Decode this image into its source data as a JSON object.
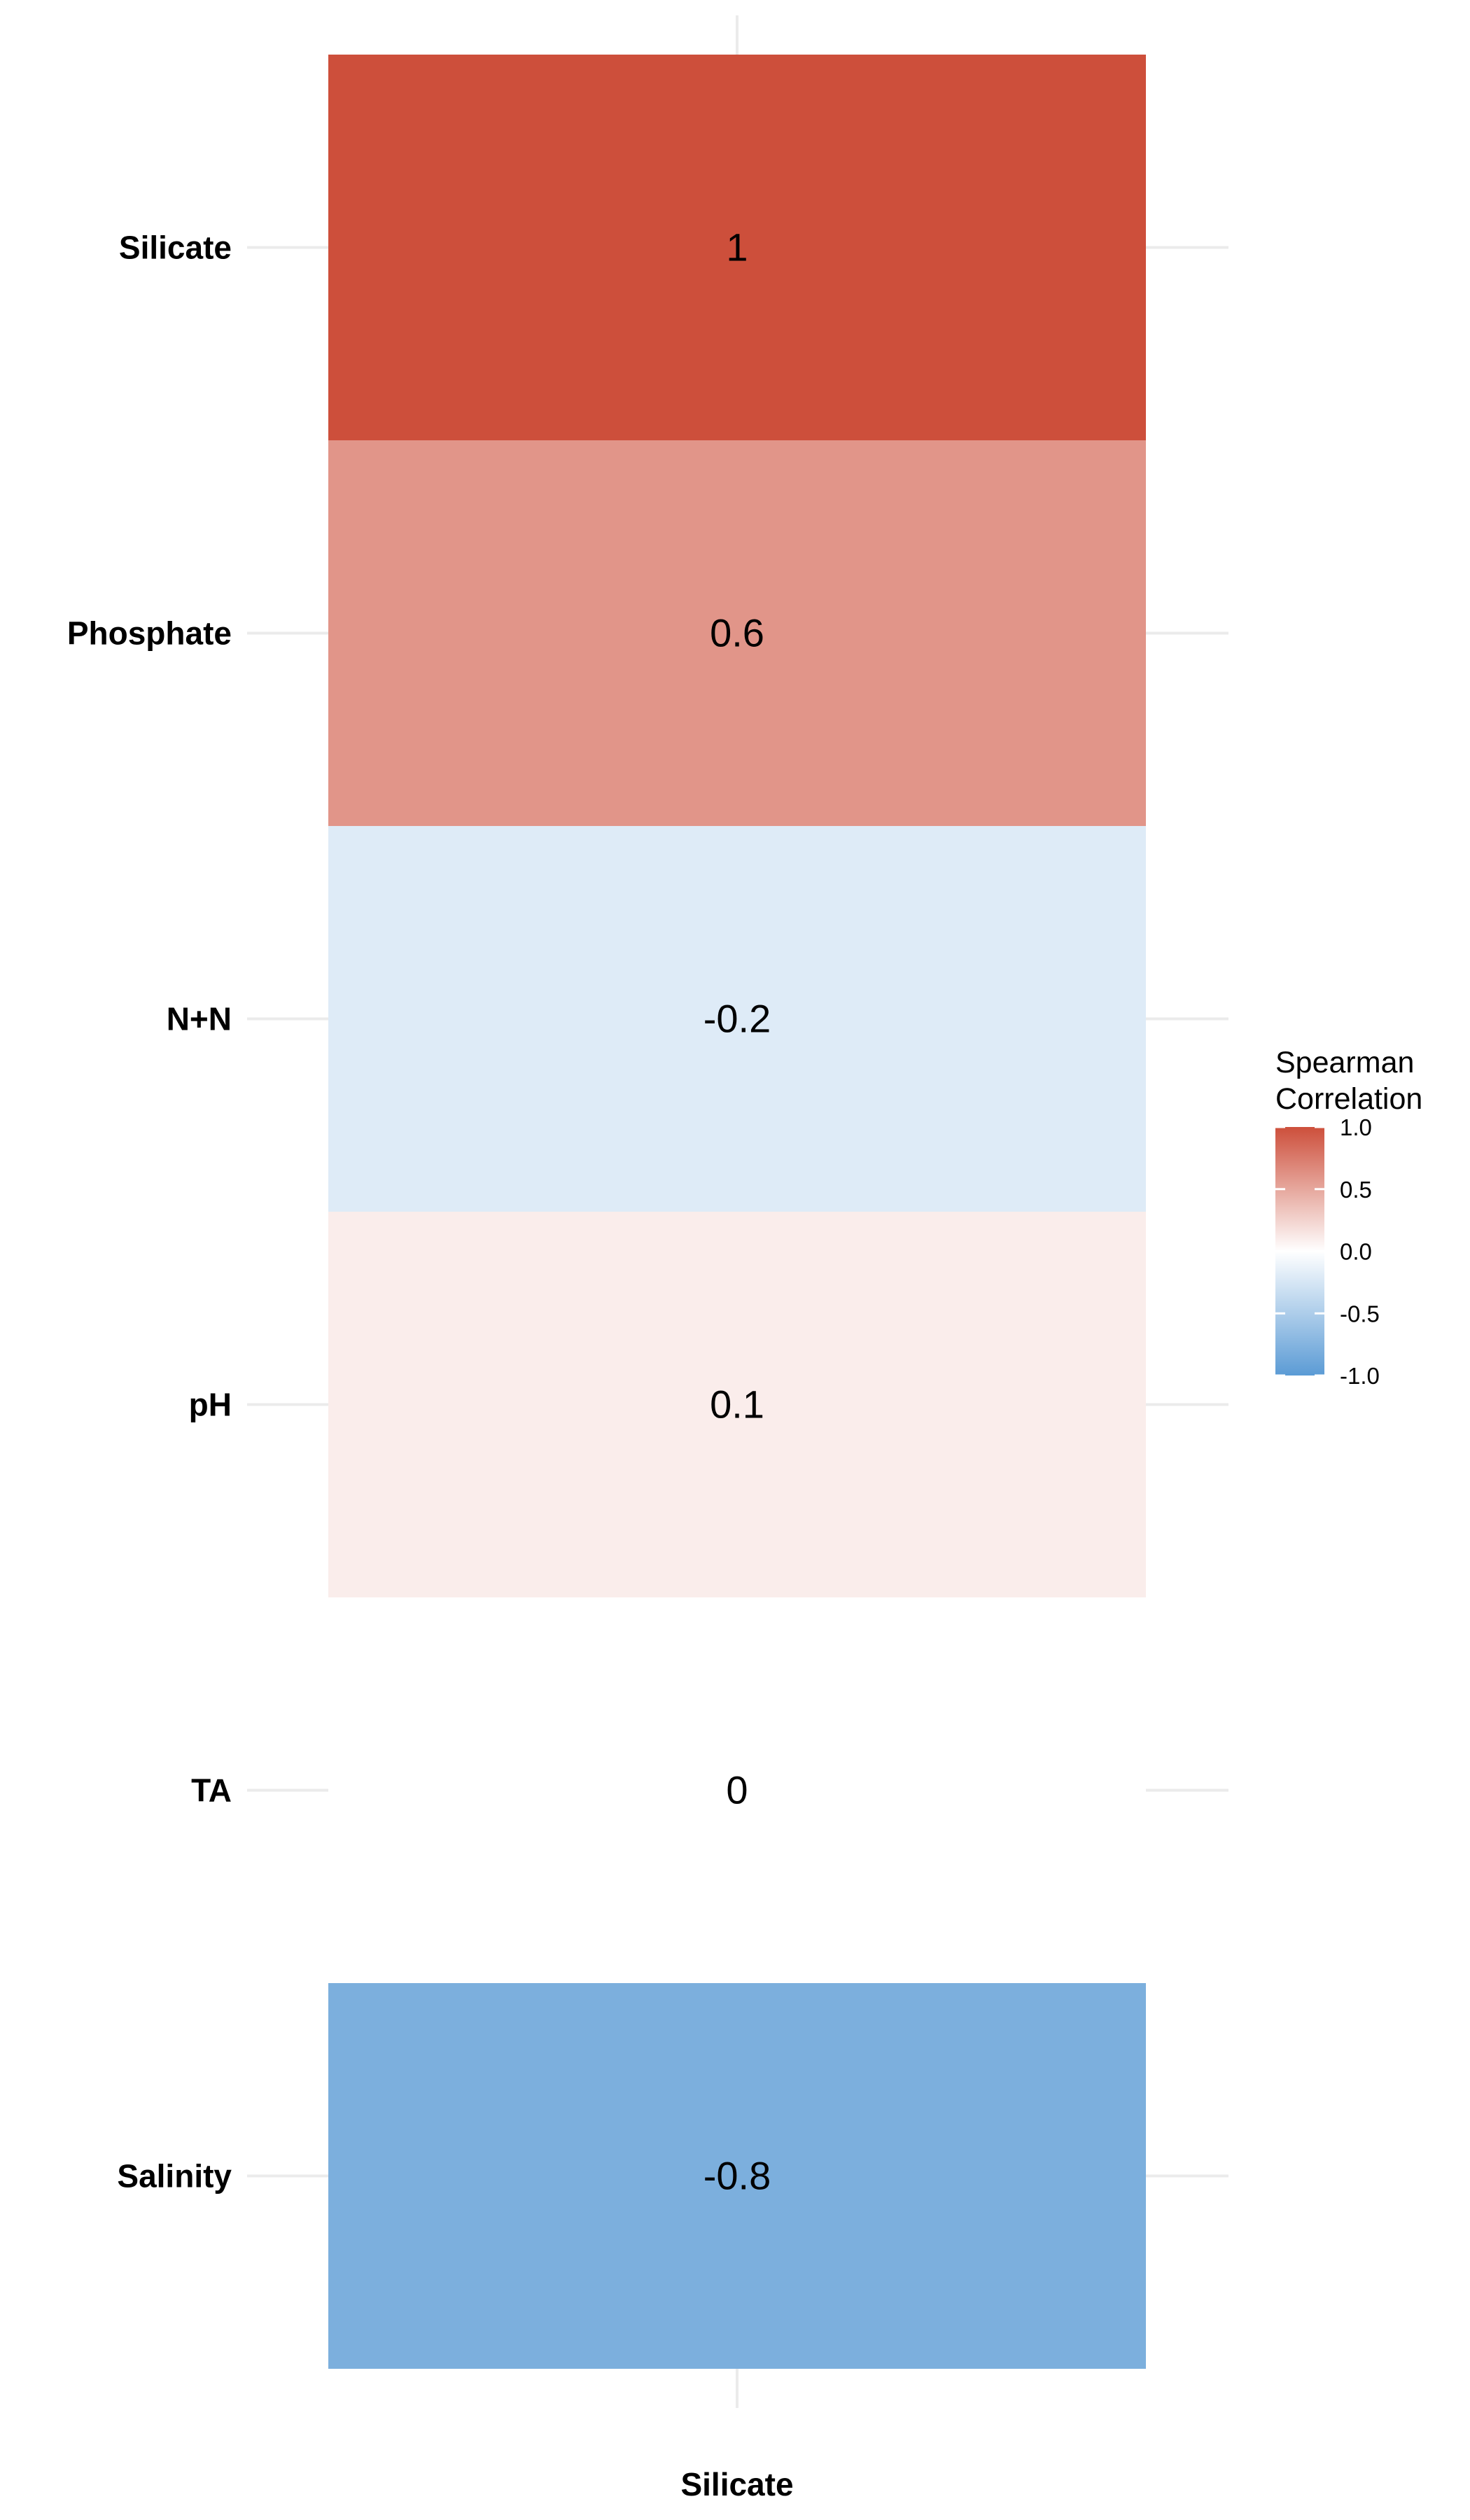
{
  "chart_data": {
    "type": "heatmap",
    "x_categories": [
      "Silicate"
    ],
    "y_categories": [
      "Silicate",
      "Phosphate",
      "N+N",
      "pH",
      "TA",
      "Salinity"
    ],
    "values": [
      1,
      0.6,
      -0.2,
      0.1,
      0,
      -0.8
    ],
    "value_labels": [
      "1",
      "0.6",
      "-0.2",
      "0.1",
      "0",
      "-0.8"
    ],
    "legend": {
      "title_lines": [
        "Spearman",
        "Correlation"
      ],
      "ticks": [
        1.0,
        0.5,
        0.0,
        -0.5,
        -1.0
      ],
      "tick_labels": [
        "1.0",
        "0.5",
        "0.0",
        "-0.5",
        "-1.0"
      ],
      "range": [
        -1,
        1
      ],
      "placement": "right"
    },
    "colors": {
      "low": "#5b9bd5",
      "mid": "#ffffff",
      "high": "#cd4f3b"
    },
    "grid": true
  }
}
